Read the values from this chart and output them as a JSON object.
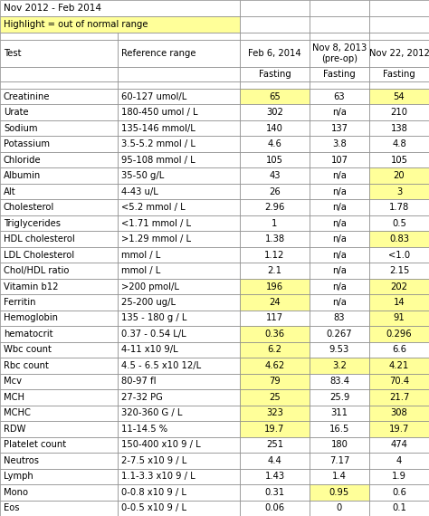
{
  "title": "Nov 2012 - Feb 2014",
  "highlight_note": "Highlight = out of normal range",
  "col_headers": [
    "Test",
    "Reference range",
    "Feb 6, 2014",
    "Nov 8, 2013\n(pre-op)",
    "Nov 22, 2012"
  ],
  "subheader": [
    "",
    "",
    "Fasting",
    "Fasting",
    "Fasting"
  ],
  "rows": [
    [
      "Creatinine",
      "60-127 umol/L",
      "65",
      "63",
      "54"
    ],
    [
      "Urate",
      "180-450 umol / L",
      "302",
      "n/a",
      "210"
    ],
    [
      "Sodium",
      "135-146 mmol/L",
      "140",
      "137",
      "138"
    ],
    [
      "Potassium",
      "3.5-5.2 mmol / L",
      "4.6",
      "3.8",
      "4.8"
    ],
    [
      "Chloride",
      "95-108 mmol / L",
      "105",
      "107",
      "105"
    ],
    [
      "Albumin",
      "35-50 g/L",
      "43",
      "n/a",
      "20"
    ],
    [
      "Alt",
      "4-43 u/L",
      "26",
      "n/a",
      "3"
    ],
    [
      "Cholesterol",
      "<5.2 mmol / L",
      "2.96",
      "n/a",
      "1.78"
    ],
    [
      "Triglycerides",
      "<1.71 mmol / L",
      "1",
      "n/a",
      "0.5"
    ],
    [
      "HDL cholesterol",
      ">1.29 mmol / L",
      "1.38",
      "n/a",
      "0.83"
    ],
    [
      "LDL Cholesterol",
      "mmol / L",
      "1.12",
      "n/a",
      "<1.0"
    ],
    [
      "Chol/HDL ratio",
      "mmol / L",
      "2.1",
      "n/a",
      "2.15"
    ],
    [
      "Vitamin b12",
      ">200 pmol/L",
      "196",
      "n/a",
      "202"
    ],
    [
      "Ferritin",
      "25-200 ug/L",
      "24",
      "n/a",
      "14"
    ],
    [
      "Hemoglobin",
      "135 - 180 g / L",
      "117",
      "83",
      "91"
    ],
    [
      "hematocrit",
      "0.37 - 0.54 L/L",
      "0.36",
      "0.267",
      "0.296"
    ],
    [
      "Wbc count",
      "4-11 x10 9/L",
      "6.2",
      "9.53",
      "6.6"
    ],
    [
      "Rbc count",
      "4.5 - 6.5 x10 12/L",
      "4.62",
      "3.2",
      "4.21"
    ],
    [
      "Mcv",
      "80-97 fl",
      "79",
      "83.4",
      "70.4"
    ],
    [
      "MCH",
      "27-32 PG",
      "25",
      "25.9",
      "21.7"
    ],
    [
      "MCHC",
      "320-360 G / L",
      "323",
      "311",
      "308"
    ],
    [
      "RDW",
      "11-14.5 %",
      "19.7",
      "16.5",
      "19.7"
    ],
    [
      "Platelet count",
      "150-400 x10 9 / L",
      "251",
      "180",
      "474"
    ],
    [
      "Neutros",
      "2-7.5 x10 9 / L",
      "4.4",
      "7.17",
      "4"
    ],
    [
      "Lymph",
      "1.1-3.3 x10 9 / L",
      "1.43",
      "1.4",
      "1.9"
    ],
    [
      "Mono",
      "0-0.8 x10 9 / L",
      "0.31",
      "0.95",
      "0.6"
    ],
    [
      "Eos",
      "0-0.5 x10 9 / L",
      "0.06",
      "0",
      "0.1"
    ]
  ],
  "highlights": {
    "col2": [
      0,
      12,
      13,
      15,
      16,
      17,
      18,
      19,
      20,
      21
    ],
    "col3": [
      17,
      25
    ],
    "col4": [
      0,
      5,
      6,
      9,
      12,
      13,
      14,
      15,
      17,
      18,
      19,
      20,
      21
    ]
  },
  "yellow": "#FFFF99",
  "white": "#FFFFFF",
  "grid_color": "#888888",
  "font_size": 7.2,
  "header_font_size": 7.5
}
